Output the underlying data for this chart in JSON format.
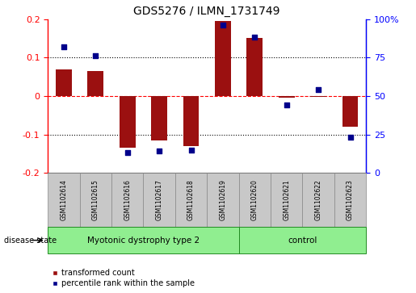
{
  "title": "GDS5276 / ILMN_1731749",
  "samples": [
    "GSM1102614",
    "GSM1102615",
    "GSM1102616",
    "GSM1102617",
    "GSM1102618",
    "GSM1102619",
    "GSM1102620",
    "GSM1102621",
    "GSM1102622",
    "GSM1102623"
  ],
  "transformed_count": [
    0.068,
    0.065,
    -0.135,
    -0.115,
    -0.13,
    0.195,
    0.15,
    -0.005,
    -0.002,
    -0.08
  ],
  "percentile_rank": [
    82,
    76,
    13,
    14,
    15,
    96,
    88,
    44,
    54,
    23
  ],
  "group_spans": [
    {
      "label": "Myotonic dystrophy type 2",
      "start": 0,
      "end": 5
    },
    {
      "label": "control",
      "start": 6,
      "end": 9
    }
  ],
  "group_bg_color": "#90EE90",
  "sample_bg_color": "#C8C8C8",
  "bar_color": "#9B1010",
  "dot_color": "#00008B",
  "ylim_left": [
    -0.2,
    0.2
  ],
  "ylim_right": [
    0,
    100
  ],
  "yticks_left": [
    -0.2,
    -0.1,
    0.0,
    0.1,
    0.2
  ],
  "ytick_labels_left": [
    "-0.2",
    "-0.1",
    "0",
    "0.1",
    "0.2"
  ],
  "yticks_right": [
    0,
    25,
    50,
    75,
    100
  ],
  "ytick_labels_right": [
    "0",
    "25",
    "50",
    "75",
    "100%"
  ],
  "legend_items": [
    "transformed count",
    "percentile rank within the sample"
  ],
  "disease_state_label": "disease state",
  "figsize": [
    5.15,
    3.63
  ],
  "dpi": 100
}
